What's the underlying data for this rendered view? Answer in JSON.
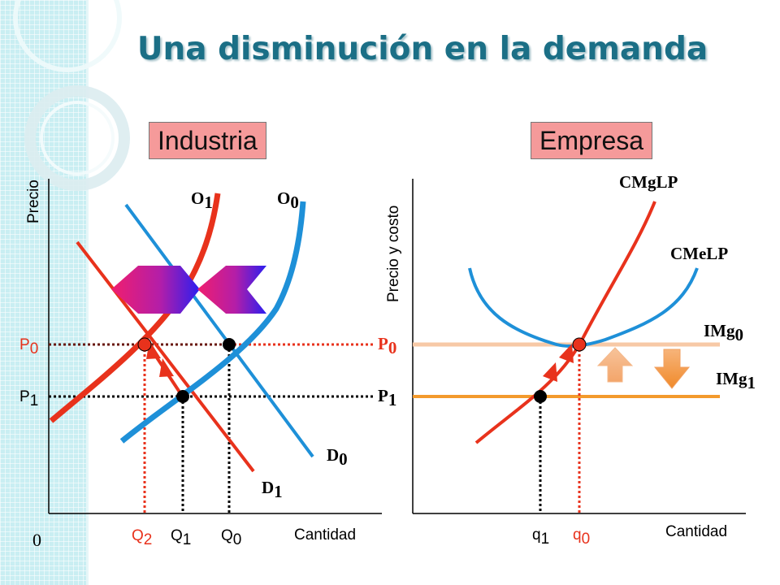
{
  "title": "Una disminución en la demanda",
  "panels": {
    "left": {
      "label": "Industria",
      "y_axis": "Precio",
      "x_axis": "Cantidad",
      "origin": "0",
      "curves": {
        "O1": "O",
        "O1_sub": "1",
        "O0": "O",
        "O0_sub": "0",
        "D0": "D",
        "D0_sub": "0",
        "D1": "D",
        "D1_sub": "1"
      },
      "prices": {
        "P0": "P",
        "P0_sub": "0",
        "P1": "P",
        "P1_sub": "1"
      },
      "quantities": {
        "Q2": "Q",
        "Q2_sub": "2",
        "Q1": "Q",
        "Q1_sub": "1",
        "Q0": "Q",
        "Q0_sub": "0"
      }
    },
    "right": {
      "label": "Empresa",
      "y_axis": "Precio y costo",
      "x_axis": "Cantidad",
      "curves": {
        "cmglp": "CMgLP",
        "cmelp": "CMeLP",
        "img0": "IMg",
        "img0_sub": "0",
        "img1": "IMg",
        "img1_sub": "1"
      },
      "prices": {
        "P0": "P",
        "P0_sub": "0",
        "P1": "P",
        "P1_sub": "1"
      },
      "quantities": {
        "q1": "q",
        "q1_sub": "1",
        "q0": "q",
        "q0_sub": "0"
      }
    }
  },
  "colors": {
    "supply_initial": "#1e90d8",
    "supply_new": "#e8321c",
    "demand_initial": "#1e90d8",
    "demand_new": "#e8321c",
    "img0_line": "#f7c9a6",
    "img1_line": "#f39a2c",
    "title": "#1b6f86",
    "label_box": "#f59a9a"
  }
}
